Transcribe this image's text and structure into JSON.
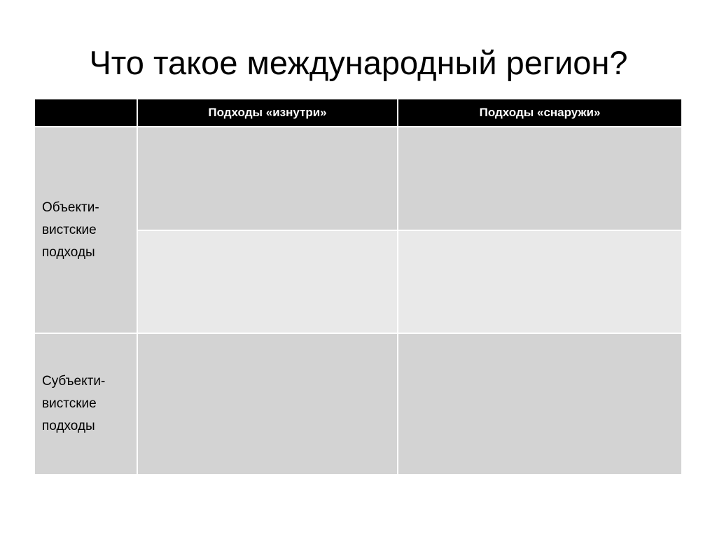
{
  "slide": {
    "title": "Что такое международный регион?",
    "table": {
      "headers": [
        "",
        "Подходы «изнутри»",
        "Подходы «снаружи»"
      ],
      "rows": [
        {
          "label_lines": [
            "Объекти-",
            "вистские",
            "подходы"
          ]
        },
        {
          "label_lines": [
            "Субъекти-",
            "вистские",
            "подходы"
          ]
        }
      ]
    }
  }
}
